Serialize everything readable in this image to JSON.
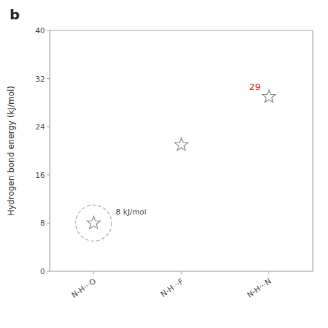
{
  "chart_data": {
    "type": "scatter",
    "title": "b",
    "y_label": "Hydrogen bond energy (kJ/mol)",
    "categories": [
      "N-H···O",
      "N-H···F",
      "N-H···N"
    ],
    "values": [
      8,
      21,
      29
    ],
    "color": "#888888",
    "marker": "star",
    "ylim": [
      0,
      40
    ],
    "yticks": [
      0,
      8,
      16,
      24,
      32,
      40
    ],
    "grid": false,
    "annotations": [
      {
        "text": "8 kJ/mol",
        "category": "N-H···O"
      },
      {
        "text": "29",
        "category": "N-H···N",
        "color": "#cc2222"
      }
    ]
  }
}
